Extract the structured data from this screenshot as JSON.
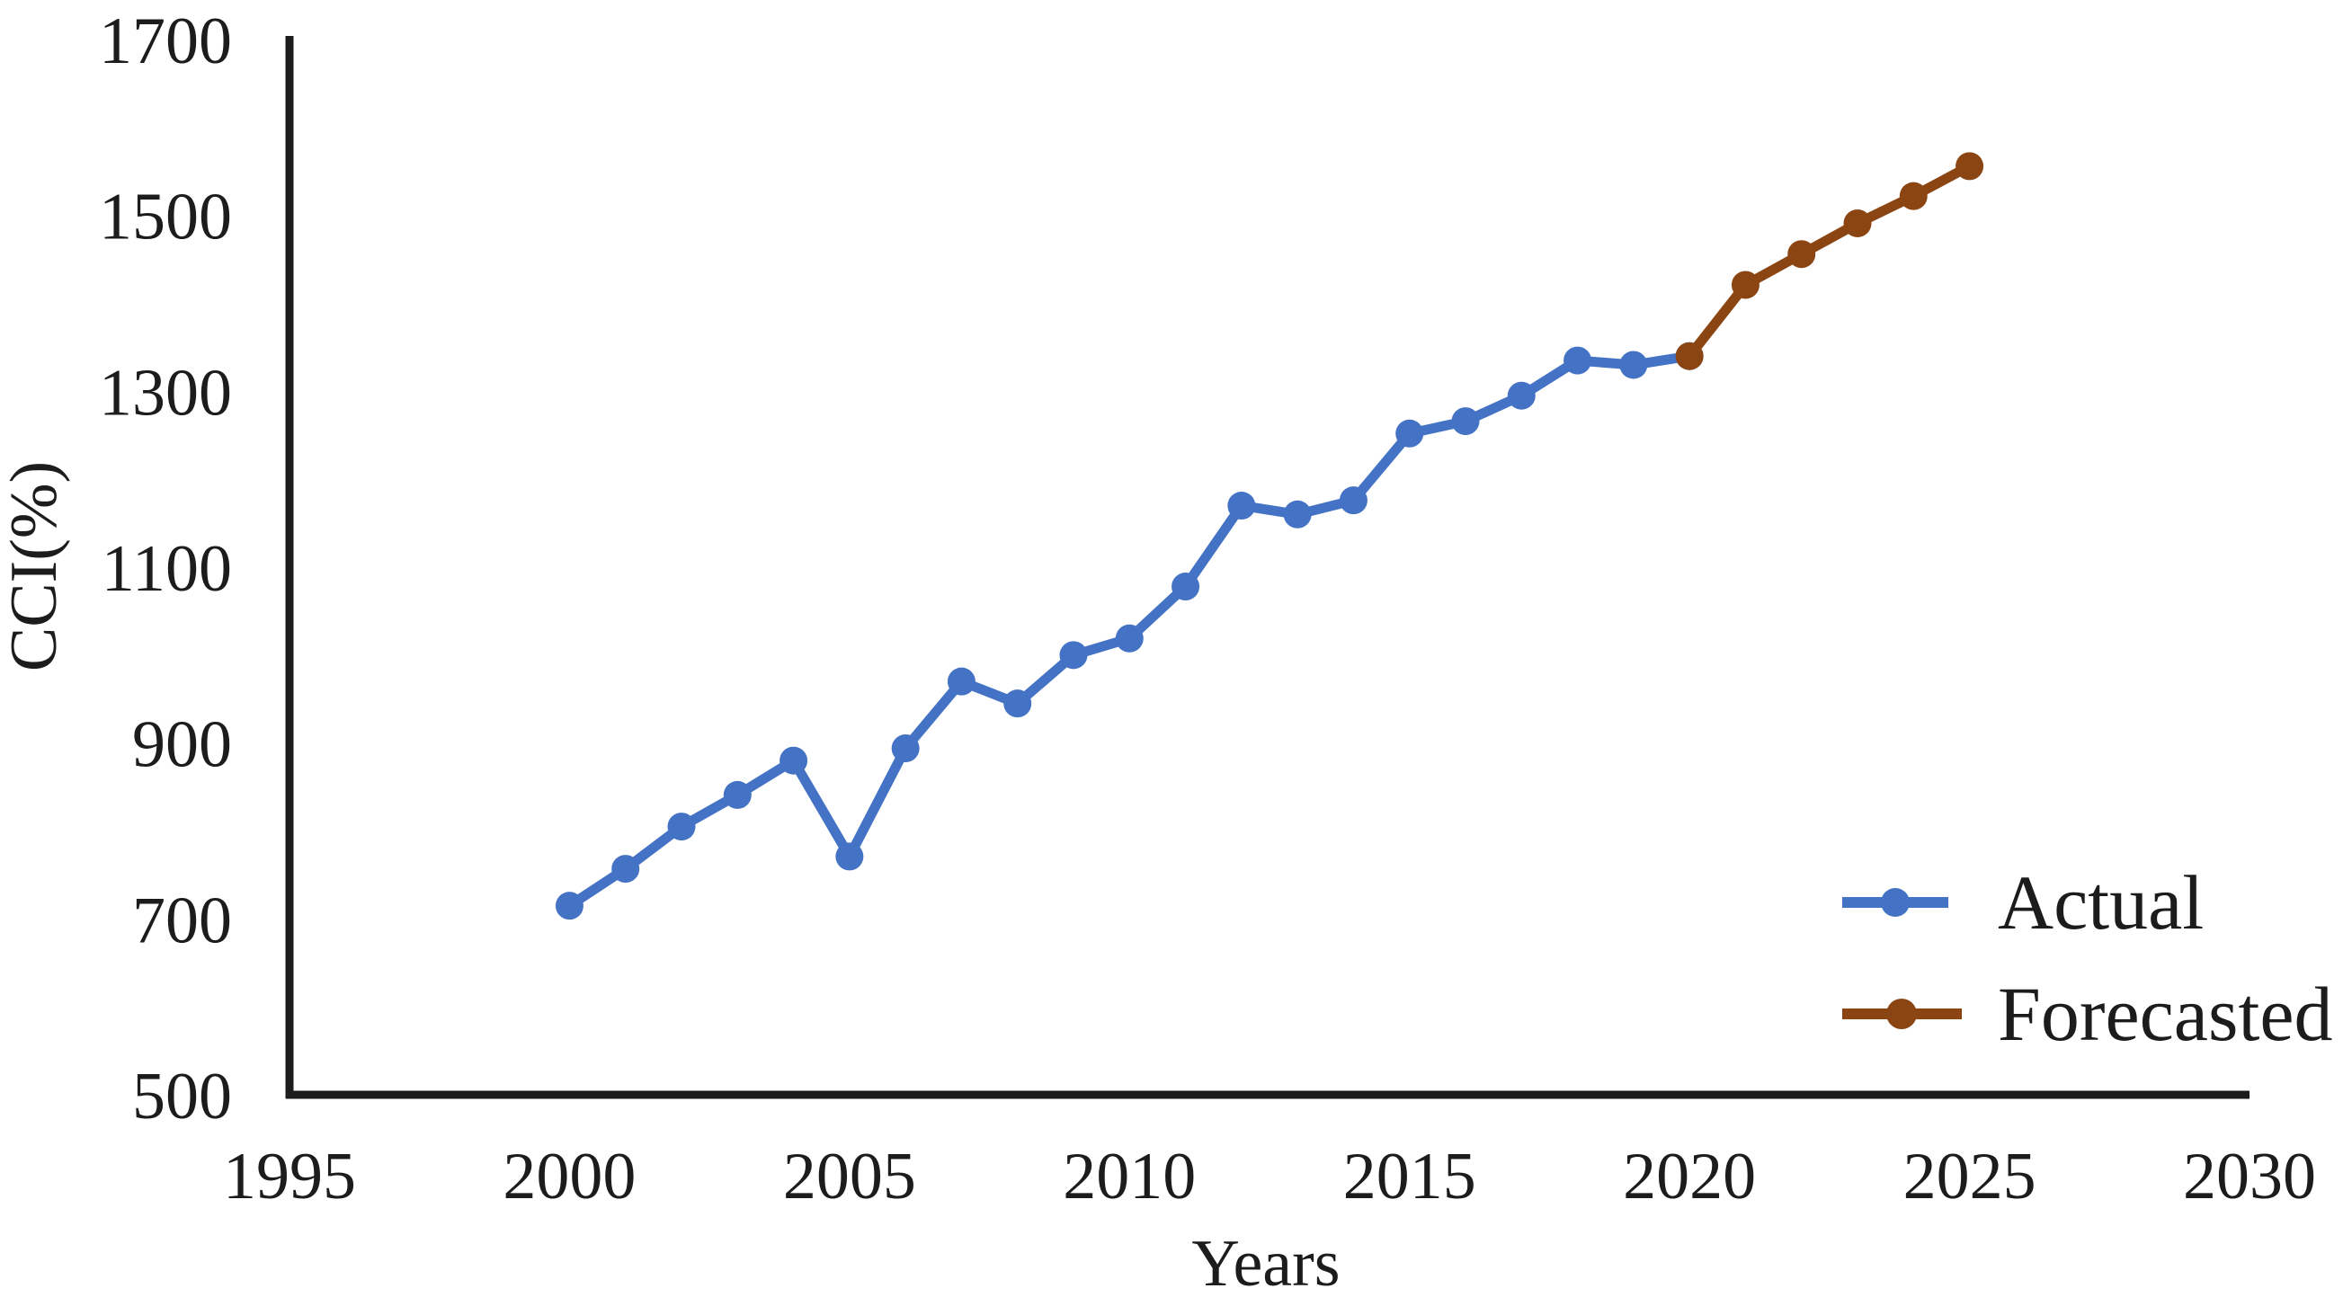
{
  "figure": {
    "background": "#ffffff",
    "axis_color": "#1c1c1c"
  },
  "chart_data": {
    "type": "line",
    "title": "",
    "xlabel": "Years",
    "ylabel": "CCI(%)",
    "xlim": [
      1995,
      2030
    ],
    "ylim": [
      500,
      1700
    ],
    "x_ticks": [
      1995,
      2000,
      2005,
      2010,
      2015,
      2020,
      2025,
      2030
    ],
    "y_ticks": [
      500,
      700,
      900,
      1100,
      1300,
      1500,
      1700
    ],
    "grid": false,
    "legend_position": "lower-right",
    "marker": "circle",
    "series": [
      {
        "name": "Actual",
        "color": "#4472C4",
        "x": [
          2000,
          2001,
          2002,
          2003,
          2004,
          2005,
          2006,
          2007,
          2008,
          2009,
          2010,
          2011,
          2012,
          2013,
          2014,
          2015,
          2016,
          2017,
          2018,
          2019,
          2020
        ],
        "values": [
          715,
          757,
          805,
          841,
          880,
          771,
          894,
          970,
          945,
          1000,
          1019,
          1078,
          1170,
          1160,
          1176,
          1252,
          1266,
          1295,
          1335,
          1330,
          1340
        ]
      },
      {
        "name": "Forecasted",
        "color": "#8B4513",
        "x": [
          2020,
          2021,
          2022,
          2023,
          2024,
          2025
        ],
        "values": [
          1340,
          1421,
          1456,
          1491,
          1522,
          1556
        ]
      }
    ]
  },
  "legend": {
    "items": [
      {
        "label": "Actual",
        "color": "#4472C4"
      },
      {
        "label": "Forecasted",
        "color": "#8B4513"
      }
    ]
  }
}
